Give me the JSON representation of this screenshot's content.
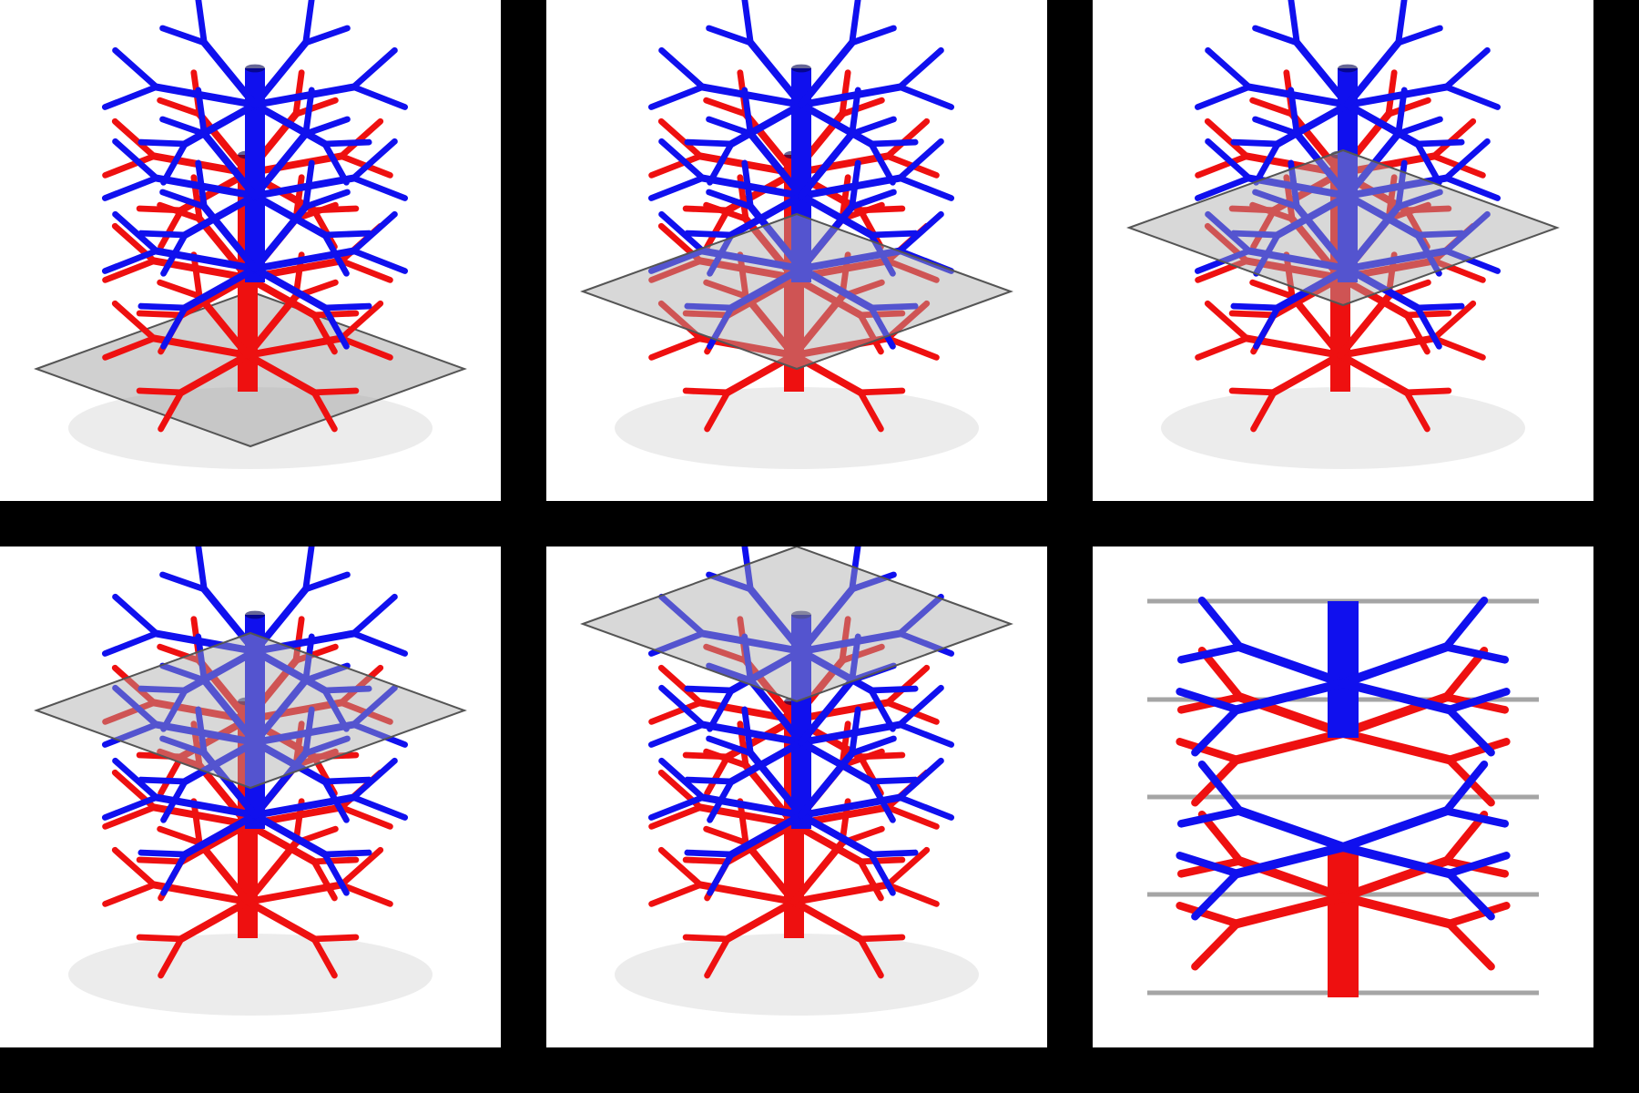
{
  "figure": {
    "background_color": "#000000",
    "panel_background": "#ffffff",
    "colors": {
      "arterial_tree": "#1010ee",
      "venous_tree": "#ee1010",
      "slice_plane": "#9a9a9a"
    },
    "panels": [
      {
        "id": "panel-1",
        "view": "perspective",
        "plane_level": "bottom"
      },
      {
        "id": "panel-2",
        "view": "perspective",
        "plane_level": "lower-middle"
      },
      {
        "id": "panel-3",
        "view": "perspective",
        "plane_level": "middle"
      },
      {
        "id": "panel-4",
        "view": "perspective",
        "plane_level": "upper-middle"
      },
      {
        "id": "panel-5",
        "view": "perspective",
        "plane_level": "top"
      },
      {
        "id": "panel-6",
        "view": "side",
        "plane_level": "all",
        "plane_count": 5
      }
    ]
  }
}
